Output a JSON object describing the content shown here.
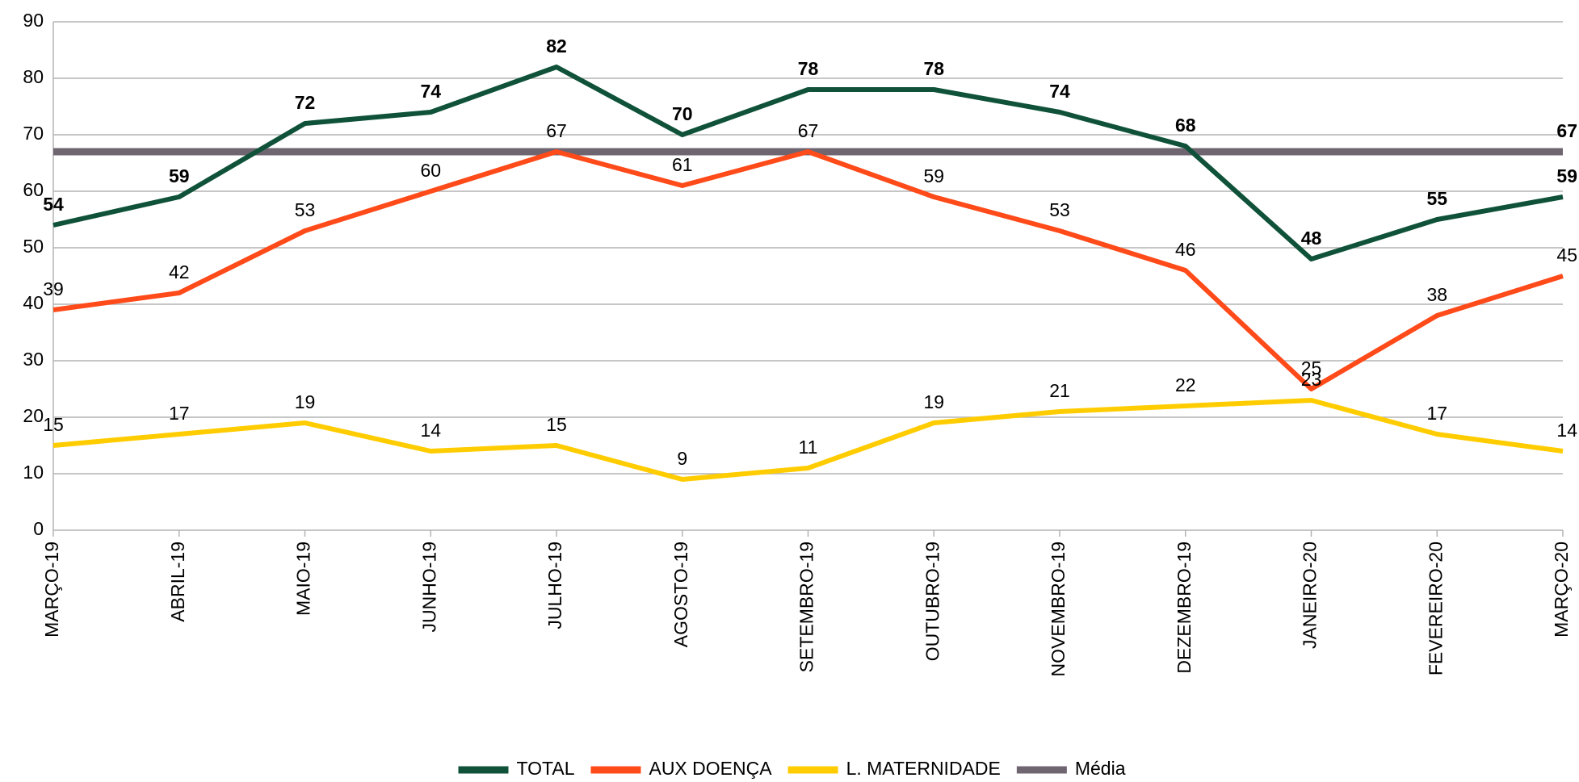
{
  "chart_data": {
    "type": "line",
    "categories": [
      "MARÇO-19",
      "ABRIL-19",
      "MAIO-19",
      "JUNHO-19",
      "JULHO-19",
      "AGOSTO-19",
      "SETEMBRO-19",
      "OUTUBRO-19",
      "NOVEMBRO-19",
      "DEZEMBRO-19",
      "JANEIRO-20",
      "FEVEREIRO-20",
      "MARÇO-20"
    ],
    "series": [
      {
        "name": "TOTAL",
        "color": "#0f5239",
        "values": [
          54,
          59,
          72,
          74,
          82,
          70,
          78,
          78,
          74,
          68,
          48,
          55,
          59
        ]
      },
      {
        "name": "AUX DOENÇA",
        "color": "#ff4a1a",
        "values": [
          39,
          42,
          53,
          60,
          67,
          61,
          67,
          59,
          53,
          46,
          25,
          38,
          45
        ]
      },
      {
        "name": "L. MATERNIDADE",
        "color": "#ffcc00",
        "values": [
          15,
          17,
          19,
          14,
          15,
          9,
          11,
          19,
          21,
          22,
          23,
          17,
          14
        ]
      },
      {
        "name": "Média",
        "color": "#6f6570",
        "values": [
          67,
          67,
          67,
          67,
          67,
          67,
          67,
          67,
          67,
          67,
          67,
          67,
          67
        ]
      }
    ],
    "ylim": [
      0,
      90
    ],
    "yticks": [
      0,
      10,
      20,
      30,
      40,
      50,
      60,
      70,
      80,
      90
    ],
    "grid": true,
    "legend": "bottom"
  }
}
